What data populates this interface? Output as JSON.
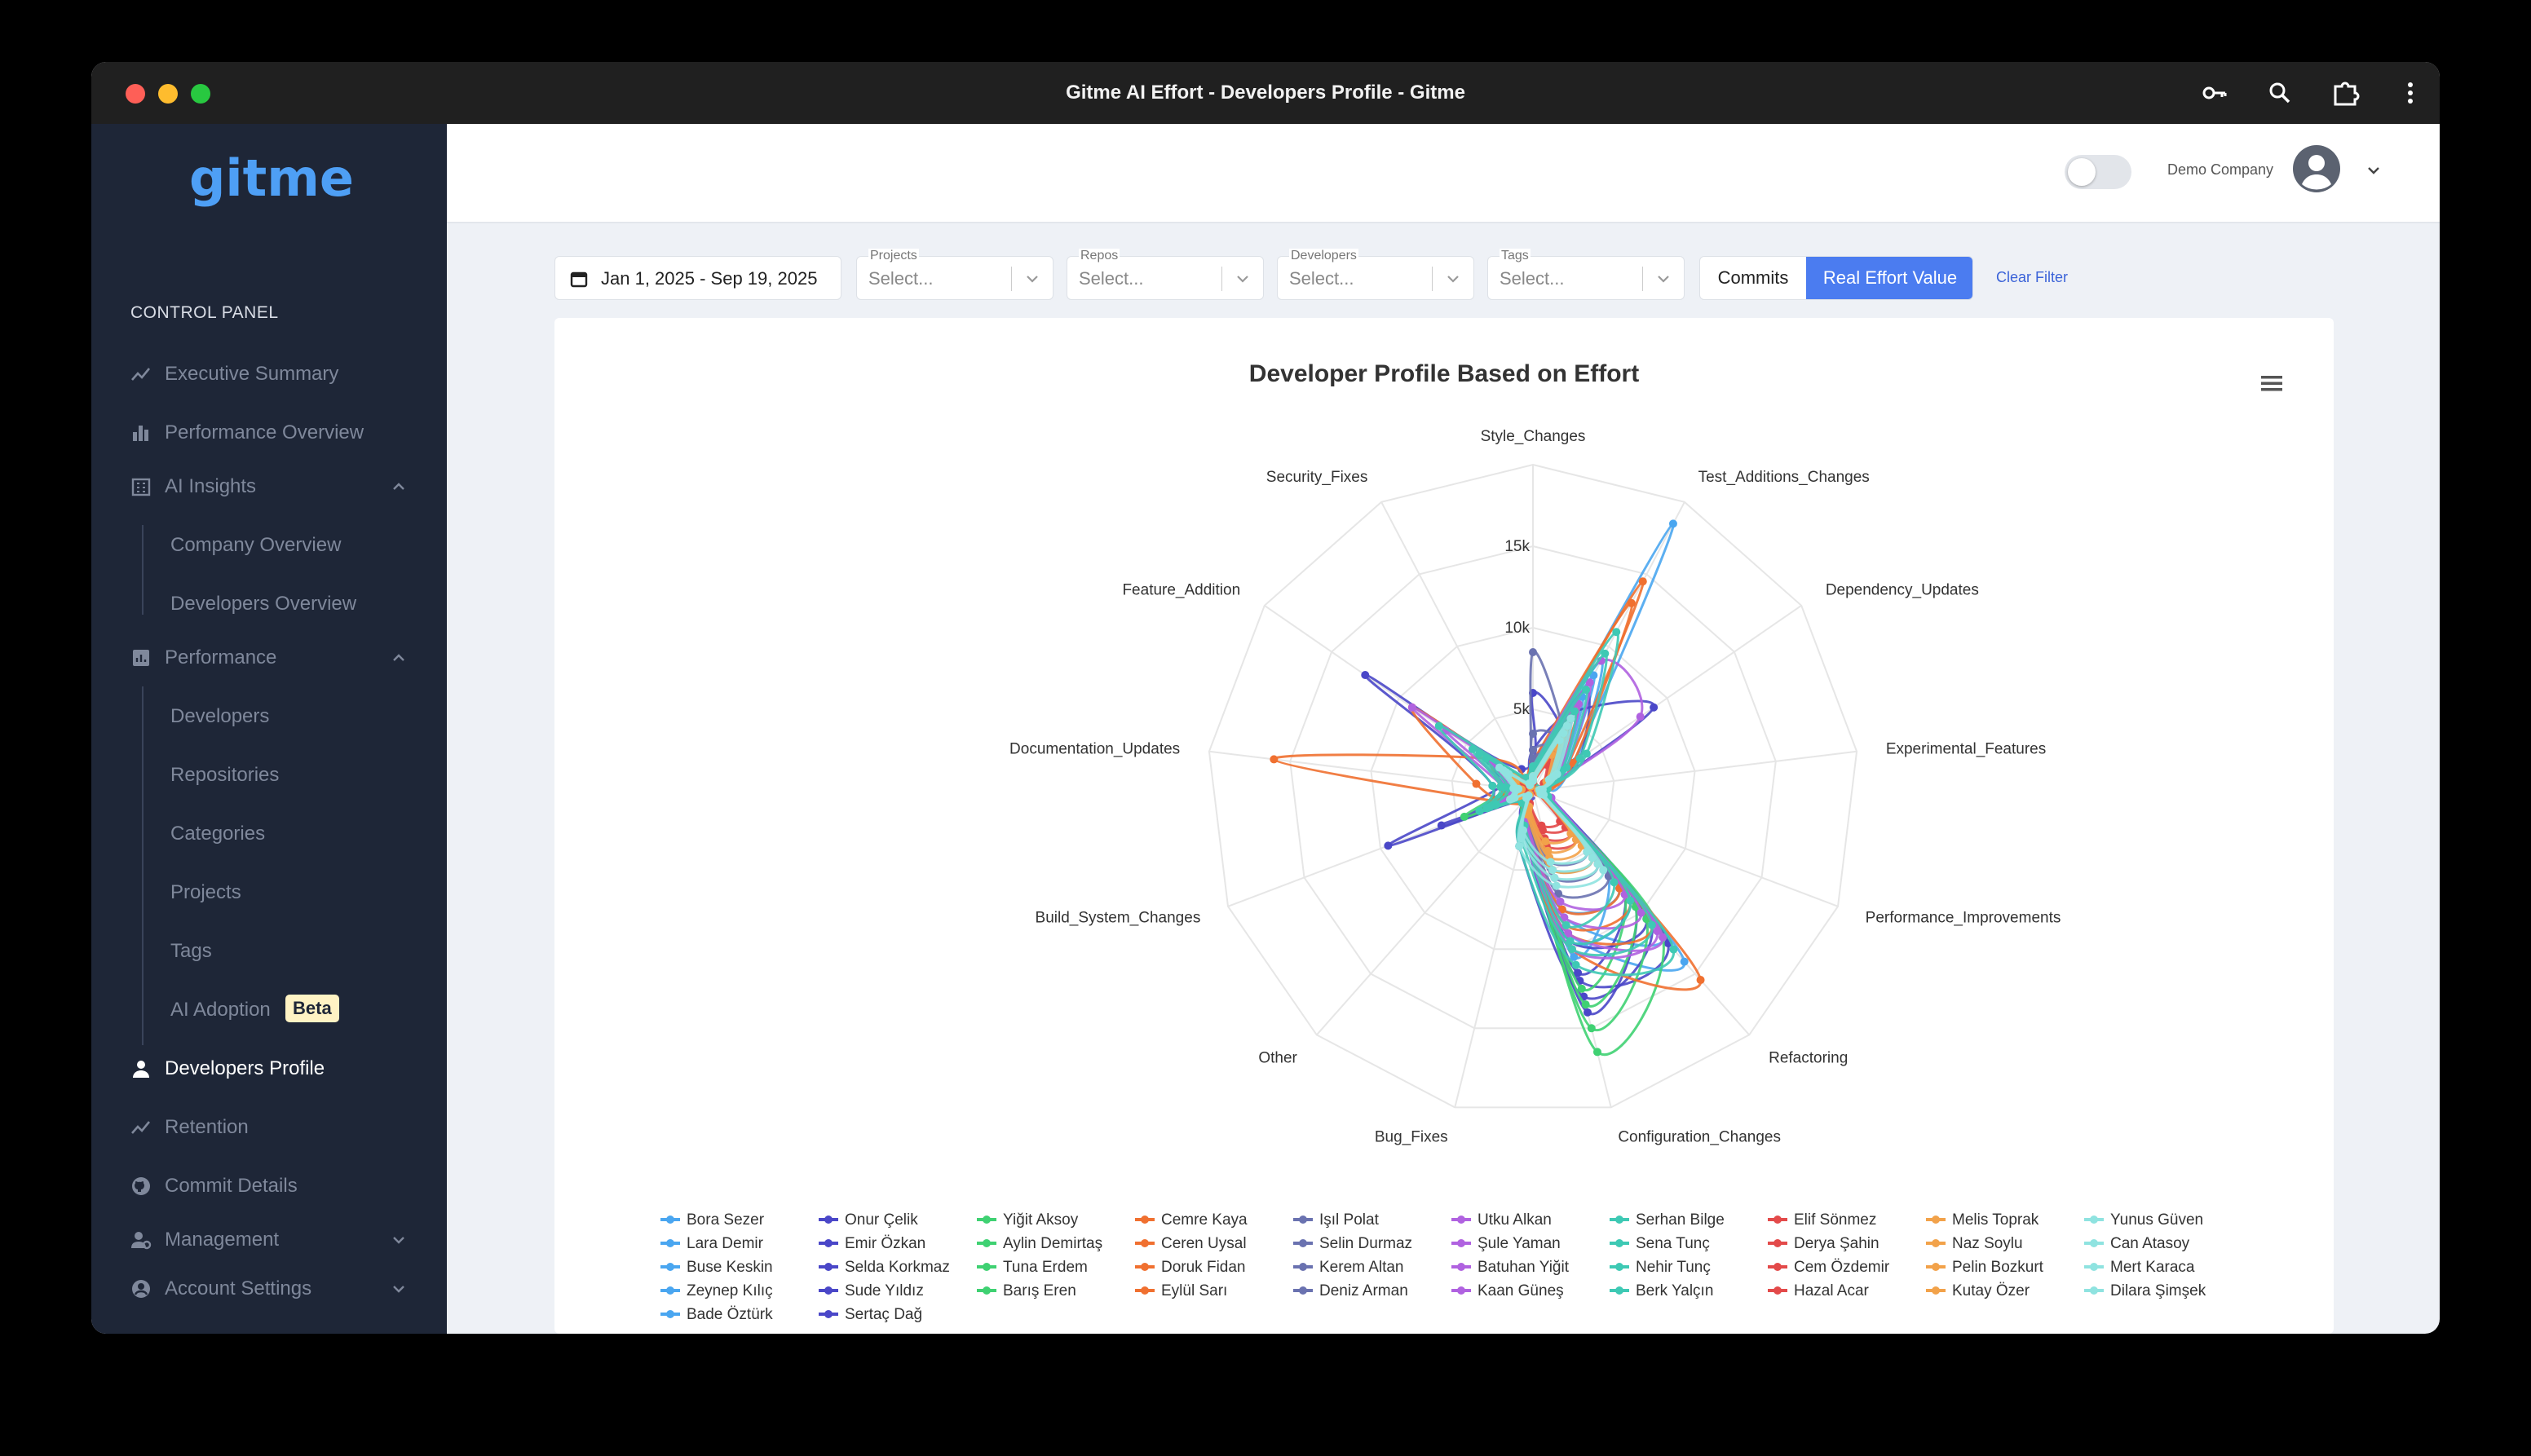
{
  "window": {
    "title": "Gitme AI Effort - Developers Profile - Gitme"
  },
  "sidebar": {
    "logo": "gitme",
    "section": "CONTROL PANEL",
    "items": [
      {
        "label": "Executive Summary",
        "icon": "trend-icon"
      },
      {
        "label": "Performance Overview",
        "icon": "bar-chart-icon"
      },
      {
        "label": "AI Insights",
        "icon": "building-icon"
      },
      {
        "label": "Company Overview"
      },
      {
        "label": "Developers Overview"
      },
      {
        "label": "Performance",
        "icon": "chart-box-icon"
      },
      {
        "label": "Developers"
      },
      {
        "label": "Repositories"
      },
      {
        "label": "Categories"
      },
      {
        "label": "Projects"
      },
      {
        "label": "Tags"
      },
      {
        "label": "AI Adoption",
        "badge": "Beta"
      },
      {
        "label": "Developers Profile",
        "icon": "user-icon"
      },
      {
        "label": "Retention",
        "icon": "trend-icon"
      },
      {
        "label": "Commit Details",
        "icon": "github-icon"
      },
      {
        "label": "Management",
        "icon": "manage-icon"
      },
      {
        "label": "Account Settings",
        "icon": "account-icon"
      }
    ]
  },
  "header": {
    "company": "Demo Company"
  },
  "filters": {
    "date_range": "Jan 1, 2025 - Sep 19, 2025",
    "projects": {
      "label": "Projects",
      "placeholder": "Select..."
    },
    "repos": {
      "label": "Repos",
      "placeholder": "Select..."
    },
    "developers": {
      "label": "Developers",
      "placeholder": "Select..."
    },
    "tags": {
      "label": "Tags",
      "placeholder": "Select..."
    },
    "mode_commits": "Commits",
    "mode_effort": "Real Effort Value",
    "clear": "Clear Filter"
  },
  "chart_data": {
    "type": "radar",
    "title": "Developer Profile Based on Effort",
    "axes": [
      "Style_Changes",
      "Test_Additions_Changes",
      "Dependency_Updates",
      "Experimental_Features",
      "Performance_Improvements",
      "Refactoring",
      "Configuration_Changes",
      "Bug_Fixes",
      "Other",
      "Build_System_Changes",
      "Documentation_Updates",
      "Feature_Addition",
      "Security_Fixes"
    ],
    "radial_ticks": [
      "5k",
      "10k",
      "15k"
    ],
    "rmax": 20000,
    "series": [
      {
        "name": "Bora Sezer",
        "color": "#4aa6f0",
        "values": [
          1200,
          18500,
          3000,
          800,
          600,
          14000,
          9000,
          1500,
          500,
          1200,
          900,
          1500,
          400
        ]
      },
      {
        "name": "Lara Demir",
        "color": "#4aa6f0",
        "values": [
          900,
          8000,
          2500,
          700,
          500,
          12000,
          8000,
          1800,
          400,
          1100,
          1000,
          2200,
          500
        ]
      },
      {
        "name": "Buse Keskin",
        "color": "#4aa6f0",
        "values": [
          1500,
          9000,
          3200,
          900,
          900,
          9000,
          9500,
          2000,
          700,
          1800,
          1500,
          3000,
          600
        ]
      },
      {
        "name": "Zeynep Kılıç",
        "color": "#4aa6f0",
        "values": [
          800,
          5000,
          1500,
          500,
          700,
          7000,
          10500,
          1500,
          600,
          1300,
          800,
          1800,
          300
        ]
      },
      {
        "name": "Bade Öztürk",
        "color": "#4aa6f0",
        "values": [
          1000,
          6500,
          2200,
          600,
          800,
          8000,
          7500,
          2200,
          500,
          1500,
          1200,
          2500,
          400
        ]
      },
      {
        "name": "Onur Çelik",
        "color": "#4a47c8",
        "values": [
          6000,
          4000,
          1800,
          700,
          1200,
          11000,
          13000,
          3500,
          900,
          6000,
          2500,
          12500,
          1500
        ]
      },
      {
        "name": "Emir Özkan",
        "color": "#4a47c8",
        "values": [
          2500,
          5500,
          9000,
          800,
          900,
          10500,
          9500,
          2000,
          700,
          9500,
          2000,
          2600,
          800
        ]
      },
      {
        "name": "Selda Korkmaz",
        "color": "#4a47c8",
        "values": [
          1800,
          7000,
          3500,
          700,
          800,
          12500,
          12000,
          2500,
          800,
          2200,
          1800,
          3200,
          600
        ]
      },
      {
        "name": "Sude Yıldız",
        "color": "#4a47c8",
        "values": [
          1200,
          4500,
          2000,
          600,
          700,
          9500,
          14000,
          2000,
          600,
          1800,
          1500,
          2600,
          500
        ]
      },
      {
        "name": "Sertaç Dağ",
        "color": "#4a47c8",
        "values": [
          1500,
          3500,
          1500,
          500,
          600,
          8500,
          11500,
          1800,
          500,
          2000,
          1200,
          3000,
          600
        ]
      },
      {
        "name": "Yiğit Aksoy",
        "color": "#3fd172",
        "values": [
          1000,
          3500,
          1500,
          500,
          700,
          12000,
          16500,
          2000,
          600,
          4500,
          1500,
          2000,
          500
        ]
      },
      {
        "name": "Aylin Demirtaş",
        "color": "#3fd172",
        "values": [
          1200,
          4500,
          2000,
          600,
          800,
          10500,
          15000,
          2200,
          600,
          3500,
          1400,
          2200,
          400
        ]
      },
      {
        "name": "Tuna Erdem",
        "color": "#3fd172",
        "values": [
          900,
          3000,
          1200,
          500,
          600,
          9500,
          13500,
          1800,
          500,
          3000,
          1200,
          1800,
          400
        ]
      },
      {
        "name": "Barış Eren",
        "color": "#3fd172",
        "values": [
          1100,
          2800,
          1400,
          400,
          500,
          8500,
          12500,
          1600,
          500,
          2500,
          1100,
          1600,
          400
        ]
      },
      {
        "name": "Cemre Kaya",
        "color": "#f07030",
        "values": [
          1500,
          14500,
          2500,
          700,
          900,
          15500,
          10000,
          2000,
          700,
          2000,
          16000,
          3500,
          800
        ]
      },
      {
        "name": "Ceren Uysal",
        "color": "#f07030",
        "values": [
          1800,
          13000,
          3000,
          900,
          800,
          11000,
          9000,
          2200,
          600,
          1800,
          3500,
          9000,
          700
        ]
      },
      {
        "name": "Doruk Fidan",
        "color": "#f07030",
        "values": [
          1200,
          6000,
          1800,
          600,
          700,
          9000,
          8500,
          1800,
          500,
          1600,
          2000,
          3000,
          600
        ]
      },
      {
        "name": "Eylül Sarı",
        "color": "#f07030",
        "values": [
          1000,
          4500,
          1500,
          500,
          600,
          8000,
          7500,
          1500,
          400,
          1400,
          1500,
          2500,
          500
        ]
      },
      {
        "name": "Işıl Polat",
        "color": "#6a72b0",
        "values": [
          8500,
          4000,
          1500,
          500,
          600,
          7000,
          6500,
          1500,
          500,
          1500,
          1200,
          2000,
          500
        ]
      },
      {
        "name": "Selin Durmaz",
        "color": "#6a72b0",
        "values": [
          3500,
          3500,
          1200,
          400,
          500,
          6000,
          5500,
          1200,
          400,
          1200,
          1000,
          1800,
          400
        ]
      },
      {
        "name": "Kerem Altan",
        "color": "#6a72b0",
        "values": [
          2500,
          3000,
          1000,
          400,
          500,
          5500,
          5000,
          1800,
          400,
          1100,
          900,
          1500,
          400
        ]
      },
      {
        "name": "Deniz Arman",
        "color": "#6a72b0",
        "values": [
          2000,
          2500,
          900,
          300,
          400,
          5000,
          4500,
          1200,
          300,
          1000,
          800,
          1300,
          300
        ]
      },
      {
        "name": "Utku Alkan",
        "color": "#b062e0",
        "values": [
          1500,
          9000,
          8000,
          700,
          800,
          11500,
          10000,
          2000,
          600,
          2000,
          1800,
          9000,
          700
        ]
      },
      {
        "name": "Şule Yaman",
        "color": "#b062e0",
        "values": [
          1200,
          7500,
          2500,
          900,
          1200,
          12000,
          9000,
          2500,
          600,
          1800,
          1500,
          6500,
          600
        ]
      },
      {
        "name": "Batuhan Yiğit",
        "color": "#b062e0",
        "values": [
          1400,
          6000,
          2000,
          700,
          900,
          10000,
          8000,
          2000,
          700,
          1600,
          1400,
          3000,
          600
        ]
      },
      {
        "name": "Kaan Güneş",
        "color": "#b062e0",
        "values": [
          1000,
          5000,
          1800,
          600,
          700,
          8500,
          7000,
          1800,
          500,
          1400,
          1200,
          2500,
          500
        ]
      },
      {
        "name": "Serhan Bilge",
        "color": "#3ec9b4",
        "values": [
          1500,
          11000,
          4000,
          800,
          900,
          13000,
          11000,
          3500,
          1000,
          3500,
          2500,
          7000,
          900
        ]
      },
      {
        "name": "Sena Tunç",
        "color": "#3ec9b4",
        "values": [
          1200,
          9500,
          3500,
          700,
          800,
          11000,
          10000,
          3000,
          900,
          3000,
          2000,
          4500,
          800
        ]
      },
      {
        "name": "Nehir Tunç",
        "color": "#3ec9b4",
        "values": [
          1300,
          7000,
          2500,
          900,
          1000,
          9000,
          9500,
          2500,
          800,
          2800,
          1800,
          4000,
          700
        ]
      },
      {
        "name": "Berk Yalçın",
        "color": "#3ec9b4",
        "values": [
          1100,
          5500,
          2200,
          600,
          800,
          7500,
          8500,
          2200,
          700,
          2400,
          1500,
          3500,
          600
        ]
      },
      {
        "name": "Elif Sönmez",
        "color": "#e34a4a",
        "values": [
          800,
          3000,
          1200,
          400,
          500,
          4000,
          3500,
          1200,
          400,
          900,
          700,
          1200,
          300
        ]
      },
      {
        "name": "Derya Şahin",
        "color": "#e34a4a",
        "values": [
          700,
          2500,
          1000,
          400,
          400,
          3500,
          3000,
          1000,
          300,
          800,
          600,
          1000,
          300
        ]
      },
      {
        "name": "Cem Özdemir",
        "color": "#e34a4a",
        "values": [
          600,
          2000,
          900,
          300,
          400,
          3000,
          2500,
          900,
          300,
          700,
          600,
          900,
          200
        ]
      },
      {
        "name": "Hazal Acar",
        "color": "#e34a4a",
        "values": [
          500,
          1800,
          800,
          300,
          300,
          2500,
          2200,
          800,
          300,
          600,
          500,
          800,
          200
        ]
      },
      {
        "name": "Melis Toprak",
        "color": "#f2a24a",
        "values": [
          900,
          4000,
          1500,
          500,
          600,
          5500,
          5000,
          1500,
          500,
          1200,
          1000,
          1800,
          400
        ]
      },
      {
        "name": "Naz Soylu",
        "color": "#f2a24a",
        "values": [
          800,
          3500,
          1300,
          400,
          500,
          4500,
          4200,
          1300,
          400,
          1000,
          900,
          1500,
          400
        ]
      },
      {
        "name": "Pelin Bozkurt",
        "color": "#f2a24a",
        "values": [
          700,
          3000,
          1200,
          400,
          500,
          4000,
          3800,
          1200,
          400,
          900,
          800,
          1400,
          300
        ]
      },
      {
        "name": "Kutay Özer",
        "color": "#f2a24a",
        "values": [
          600,
          2500,
          1000,
          300,
          400,
          3500,
          3200,
          1000,
          300,
          800,
          700,
          1200,
          300
        ]
      },
      {
        "name": "Yunus Güven",
        "color": "#8fe3e0",
        "values": [
          900,
          5000,
          1800,
          600,
          700,
          6500,
          6000,
          3500,
          600,
          1500,
          1200,
          2500,
          500
        ]
      },
      {
        "name": "Can Atasoy",
        "color": "#8fe3e0",
        "values": [
          800,
          4500,
          1600,
          500,
          600,
          6000,
          5500,
          3000,
          500,
          1400,
          1100,
          2200,
          400
        ]
      },
      {
        "name": "Mert Karaca",
        "color": "#8fe3e0",
        "values": [
          700,
          4000,
          1400,
          500,
          600,
          5500,
          5000,
          2800,
          500,
          1300,
          1000,
          2000,
          400
        ]
      },
      {
        "name": "Dilara Şimşek",
        "color": "#8fe3e0",
        "values": [
          600,
          3500,
          1200,
          400,
          500,
          5000,
          4500,
          2500,
          400,
          1200,
          900,
          1800,
          400
        ]
      }
    ]
  }
}
